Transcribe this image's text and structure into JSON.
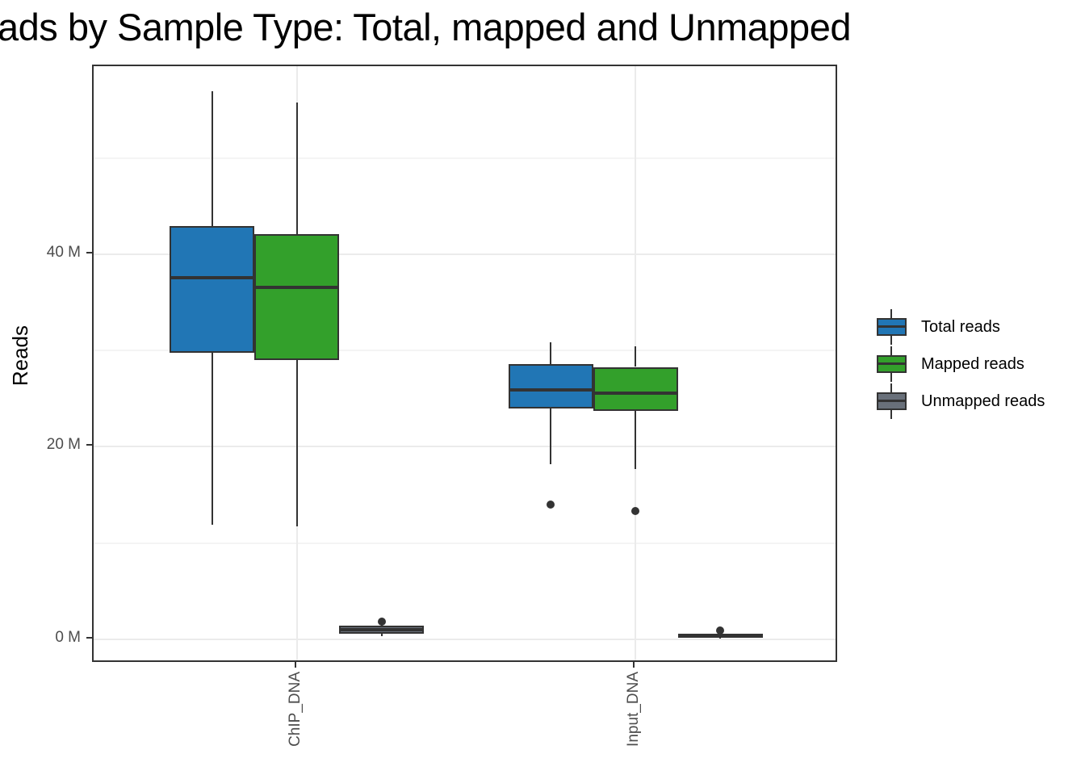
{
  "chart_data": {
    "type": "boxplot",
    "title_visible": "ads by Sample Type: Total, mapped and Unmapped",
    "ylabel": "Reads",
    "xlabel": "",
    "units": "millions of reads",
    "categories": [
      "ChIP_DNA",
      "Input_DNA"
    ],
    "y_ticks": [
      {
        "value": 0,
        "label": "0 M"
      },
      {
        "value": 20,
        "label": "20 M"
      },
      {
        "value": 40,
        "label": "40 M"
      }
    ],
    "y_minor_gridlines": [
      10,
      30,
      50
    ],
    "y_range": [
      -2.52,
      59.54
    ],
    "grid": true,
    "legend_position": "right",
    "series": [
      {
        "name": "Total reads",
        "color": "#2176B5",
        "stats": [
          {
            "category": "ChIP_DNA",
            "min": 11.9,
            "q1": 29.8,
            "median": 37.6,
            "q3": 42.9,
            "max": 56.9,
            "outliers": []
          },
          {
            "category": "Input_DNA",
            "min": 18.2,
            "q1": 24.0,
            "median": 25.9,
            "q3": 28.6,
            "max": 30.9,
            "outliers": [
              14.0
            ]
          }
        ]
      },
      {
        "name": "Mapped reads",
        "color": "#33A02B",
        "stats": [
          {
            "category": "ChIP_DNA",
            "min": 11.7,
            "q1": 29.0,
            "median": 36.6,
            "q3": 42.1,
            "max": 55.8,
            "outliers": []
          },
          {
            "category": "Input_DNA",
            "min": 17.7,
            "q1": 23.7,
            "median": 25.6,
            "q3": 28.3,
            "max": 30.4,
            "outliers": [
              13.3
            ]
          }
        ]
      },
      {
        "name": "Unmapped reads",
        "color": "#69707A",
        "stats": [
          {
            "category": "ChIP_DNA",
            "min": 0.3,
            "q1": 0.6,
            "median": 1.0,
            "q3": 1.4,
            "max": 1.6,
            "outliers": [
              1.8
            ]
          },
          {
            "category": "Input_DNA",
            "min": 0.05,
            "q1": 0.2,
            "median": 0.4,
            "q3": 0.6,
            "max": 0.7,
            "outliers": [
              0.9
            ]
          }
        ]
      }
    ],
    "style_colors": {
      "box_stroke": "#333333",
      "grid_major": "#EBEBEB",
      "grid_minor": "#F4F4F4",
      "tick_label": "#4D4D4D",
      "panel_border": "#333333"
    }
  }
}
